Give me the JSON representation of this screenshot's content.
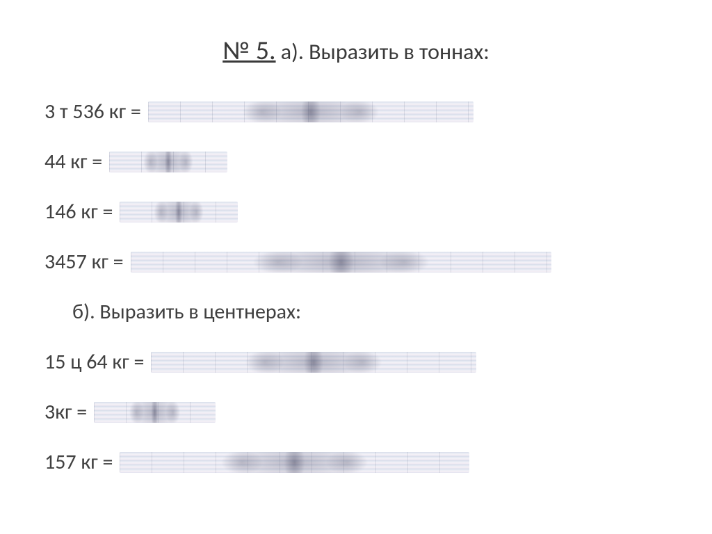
{
  "title": {
    "prefix": "№ 5.",
    "text_a": " а). Выразить в тоннах:"
  },
  "part_a": {
    "rows": [
      {
        "lhs": "3 т  536 кг  =",
        "smear_width": 468
      },
      {
        "lhs": "44 кг  =",
        "smear_width": 170
      },
      {
        "lhs": "146 кг  =",
        "smear_width": 170
      },
      {
        "lhs": "3457 кг =",
        "smear_width": 605
      }
    ]
  },
  "subheader_b": "б). Выразить в центнерах:",
  "part_b": {
    "rows": [
      {
        "lhs": "15 ц 64 кг   =",
        "smear_width": 468
      },
      {
        "lhs": "3кг  =",
        "smear_width": 175
      },
      {
        "lhs": "157 кг =",
        "smear_width": 503
      }
    ]
  },
  "colors": {
    "background": "#ffffff",
    "title_text": "#3a3a3a",
    "body_text": "#404040",
    "smear_base": "#c3cadd"
  },
  "fonts": {
    "title_size_pt": 28,
    "subtitle_size_pt": 24,
    "body_size_pt": 22,
    "family": "Calibri"
  }
}
